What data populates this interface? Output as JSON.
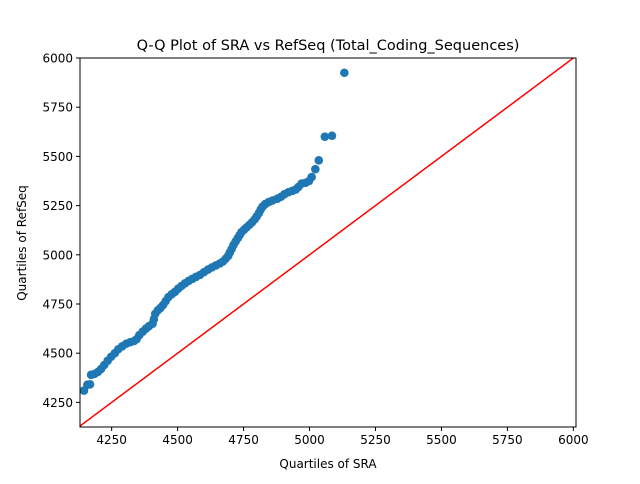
{
  "chart_data": {
    "type": "scatter",
    "title": "Q-Q Plot of SRA vs RefSeq (Total_Coding_Sequences)",
    "xlabel": "Quartiles of SRA",
    "ylabel": "Quartiles of RefSeq",
    "xlim": [
      4130,
      6010
    ],
    "ylim": [
      4125,
      6000
    ],
    "xticks": [
      4250,
      4500,
      4750,
      5000,
      5250,
      5500,
      5750,
      6000
    ],
    "yticks": [
      4250,
      4500,
      4750,
      5000,
      5250,
      5500,
      5750,
      6000
    ],
    "grid": false,
    "legend": "none",
    "point_color": "#1f77b4",
    "reference_line": {
      "color": "#ff0000",
      "x": [
        4130,
        6010
      ],
      "y": [
        4130,
        6010
      ]
    },
    "points": [
      [
        4145,
        4310
      ],
      [
        4158,
        4340
      ],
      [
        4168,
        4342
      ],
      [
        4172,
        4390
      ],
      [
        4185,
        4395
      ],
      [
        4198,
        4405
      ],
      [
        4210,
        4420
      ],
      [
        4222,
        4440
      ],
      [
        4235,
        4462
      ],
      [
        4248,
        4482
      ],
      [
        4262,
        4500
      ],
      [
        4275,
        4520
      ],
      [
        4290,
        4535
      ],
      [
        4305,
        4548
      ],
      [
        4320,
        4556
      ],
      [
        4335,
        4562
      ],
      [
        4345,
        4572
      ],
      [
        4355,
        4592
      ],
      [
        4368,
        4610
      ],
      [
        4380,
        4625
      ],
      [
        4392,
        4638
      ],
      [
        4405,
        4650
      ],
      [
        4410,
        4672
      ],
      [
        4415,
        4700
      ],
      [
        4425,
        4718
      ],
      [
        4435,
        4730
      ],
      [
        4445,
        4745
      ],
      [
        4455,
        4765
      ],
      [
        4465,
        4785
      ],
      [
        4478,
        4800
      ],
      [
        4490,
        4812
      ],
      [
        4502,
        4828
      ],
      [
        4515,
        4842
      ],
      [
        4528,
        4855
      ],
      [
        4542,
        4868
      ],
      [
        4556,
        4878
      ],
      [
        4570,
        4888
      ],
      [
        4585,
        4898
      ],
      [
        4600,
        4912
      ],
      [
        4615,
        4925
      ],
      [
        4630,
        4936
      ],
      [
        4645,
        4946
      ],
      [
        4660,
        4956
      ],
      [
        4672,
        4966
      ],
      [
        4682,
        4980
      ],
      [
        4692,
        4995
      ],
      [
        4698,
        5012
      ],
      [
        4705,
        5030
      ],
      [
        4712,
        5050
      ],
      [
        4720,
        5068
      ],
      [
        4728,
        5085
      ],
      [
        4735,
        5100
      ],
      [
        4742,
        5115
      ],
      [
        4752,
        5128
      ],
      [
        4762,
        5140
      ],
      [
        4772,
        5152
      ],
      [
        4782,
        5165
      ],
      [
        4792,
        5180
      ],
      [
        4800,
        5195
      ],
      [
        4808,
        5212
      ],
      [
        4815,
        5230
      ],
      [
        4822,
        5245
      ],
      [
        4832,
        5258
      ],
      [
        4845,
        5268
      ],
      [
        4860,
        5276
      ],
      [
        4878,
        5285
      ],
      [
        4892,
        5295
      ],
      [
        4905,
        5308
      ],
      [
        4920,
        5318
      ],
      [
        4935,
        5325
      ],
      [
        4948,
        5332
      ],
      [
        4958,
        5345
      ],
      [
        4970,
        5362
      ],
      [
        4985,
        5366
      ],
      [
        4998,
        5375
      ],
      [
        5008,
        5395
      ],
      [
        5022,
        5435
      ],
      [
        5035,
        5480
      ],
      [
        5058,
        5600
      ],
      [
        5085,
        5605
      ],
      [
        5132,
        5925
      ]
    ]
  }
}
